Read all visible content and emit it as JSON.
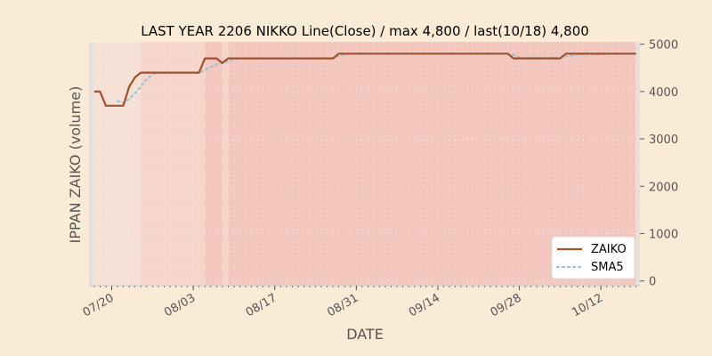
{
  "chart_data": {
    "type": "line",
    "title": "LAST YEAR 2206 NIKKO Line(Close) / max 4,800 / last(10/18) 4,800",
    "xlabel": "DATE",
    "ylabel": "IPPAN ZAIKO (volume)",
    "ylim": [
      -100,
      5050
    ],
    "yticks": [
      0,
      1000,
      2000,
      3000,
      4000,
      5000
    ],
    "ytick_labels": [
      "0",
      "1000",
      "2000",
      "3000",
      "4000",
      "5000"
    ],
    "y_axis_side": "right",
    "x_start": "2021-07-17",
    "x_end": "2021-10-18",
    "xticks": [
      "2021-07-20",
      "2021-08-03",
      "2021-08-17",
      "2021-08-31",
      "2021-09-14",
      "2021-09-28",
      "2021-10-12"
    ],
    "xtick_labels": [
      "07/20",
      "08/03",
      "08/17",
      "08/31",
      "09/14",
      "09/28",
      "10/12"
    ],
    "grid": true,
    "legend": "bottom-right",
    "colors": {
      "background": "#faebd7",
      "zaiko": "#a0522d",
      "sma5": "#9ec3d2",
      "band_light": "#f5e0d5",
      "band_mid": "#f6d4ca",
      "band_dark": "#f3c7bd",
      "band_gray": "#e7e0da"
    },
    "series": [
      {
        "name": "ZAIKO",
        "style": "solid",
        "x": [
          "2021-07-17",
          "2021-07-18",
          "2021-07-19",
          "2021-07-20",
          "2021-07-21",
          "2021-07-22",
          "2021-07-23",
          "2021-07-24",
          "2021-07-25",
          "2021-07-26",
          "2021-07-27",
          "2021-07-28",
          "2021-07-29",
          "2021-07-30",
          "2021-07-31",
          "2021-08-01",
          "2021-08-02",
          "2021-08-03",
          "2021-08-04",
          "2021-08-05",
          "2021-08-06",
          "2021-08-07",
          "2021-08-08",
          "2021-08-09",
          "2021-08-10",
          "2021-08-11",
          "2021-08-12",
          "2021-08-27",
          "2021-08-28",
          "2021-08-29",
          "2021-08-30",
          "2021-09-26",
          "2021-09-27",
          "2021-09-28",
          "2021-10-04",
          "2021-10-05",
          "2021-10-06",
          "2021-10-18"
        ],
        "y": [
          4000,
          4000,
          3700,
          3700,
          3700,
          3700,
          4100,
          4300,
          4400,
          4400,
          4400,
          4400,
          4400,
          4400,
          4400,
          4400,
          4400,
          4400,
          4400,
          4700,
          4700,
          4700,
          4600,
          4700,
          4700,
          4700,
          4700,
          4700,
          4800,
          4800,
          4800,
          4800,
          4700,
          4700,
          4700,
          4700,
          4800,
          4800
        ]
      },
      {
        "name": "SMA5",
        "style": "dotted",
        "x": [
          "2021-07-21",
          "2021-07-22",
          "2021-07-23",
          "2021-07-24",
          "2021-07-25",
          "2021-07-26",
          "2021-07-27",
          "2021-07-28",
          "2021-07-29",
          "2021-07-30",
          "2021-08-01",
          "2021-08-04",
          "2021-08-05",
          "2021-08-06",
          "2021-08-07",
          "2021-08-08",
          "2021-08-09",
          "2021-08-10",
          "2021-08-11",
          "2021-08-12",
          "2021-08-27",
          "2021-08-28",
          "2021-08-29",
          "2021-08-30",
          "2021-09-26",
          "2021-09-27",
          "2021-09-28",
          "2021-10-05",
          "2021-10-06",
          "2021-10-07",
          "2021-10-08",
          "2021-10-18"
        ],
        "y": [
          3800,
          3760,
          3840,
          3960,
          4100,
          4260,
          4360,
          4400,
          4400,
          4400,
          4400,
          4400,
          4460,
          4520,
          4580,
          4600,
          4640,
          4680,
          4700,
          4700,
          4700,
          4760,
          4780,
          4800,
          4800,
          4780,
          4720,
          4720,
          4740,
          4760,
          4780,
          4800
        ]
      }
    ],
    "bands": [
      {
        "from": "2021-07-16",
        "to": "2021-07-17",
        "shade": "band_gray"
      },
      {
        "from": "2021-07-17",
        "to": "2021-07-25",
        "shade": "band_light"
      },
      {
        "from": "2021-07-25",
        "to": "2021-08-05",
        "shade": "band_mid"
      },
      {
        "from": "2021-08-05",
        "to": "2021-08-08",
        "shade": "band_dark"
      },
      {
        "from": "2021-08-08",
        "to": "2021-08-09",
        "shade": "band_mid"
      },
      {
        "from": "2021-08-09",
        "to": "2021-10-18",
        "shade": "band_dark"
      },
      {
        "from": "2021-10-18",
        "to": "2021-10-19",
        "shade": "band_gray"
      }
    ]
  }
}
